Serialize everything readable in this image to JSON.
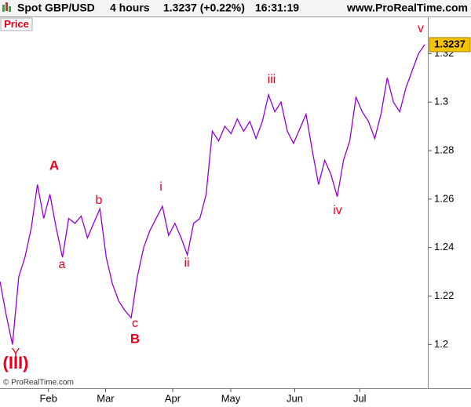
{
  "chart_data": {
    "type": "line",
    "title": "Spot GBP/USD",
    "timeframe": "4 hours",
    "quote": "1.3237 (+0.22%)",
    "time": "16:31:19",
    "source": "www.ProRealTime.com",
    "panel_label": "Price",
    "copyright": "© ProRealTime.com",
    "color": "#9400d3",
    "x": [
      0,
      2,
      4,
      6,
      8,
      10,
      12,
      14,
      16,
      18,
      20,
      22,
      24,
      26,
      28,
      30,
      32,
      34,
      36,
      38,
      40,
      42,
      44,
      46,
      48,
      50,
      52,
      54,
      56,
      58,
      60,
      62,
      64,
      66,
      68,
      70,
      72,
      74,
      76,
      78,
      80,
      82,
      84,
      86,
      88,
      90,
      92,
      94,
      96,
      98,
      100,
      102,
      104,
      106,
      108,
      110,
      112,
      114,
      116,
      118,
      120,
      122,
      124,
      126,
      128,
      130,
      132,
      134,
      136
    ],
    "values": [
      1.226,
      1.212,
      1.2,
      1.228,
      1.236,
      1.248,
      1.266,
      1.252,
      1.262,
      1.248,
      1.236,
      1.252,
      1.25,
      1.253,
      1.244,
      1.25,
      1.256,
      1.236,
      1.225,
      1.218,
      1.214,
      1.211,
      1.228,
      1.24,
      1.247,
      1.252,
      1.257,
      1.245,
      1.25,
      1.244,
      1.237,
      1.25,
      1.252,
      1.262,
      1.288,
      1.284,
      1.29,
      1.287,
      1.293,
      1.288,
      1.292,
      1.285,
      1.292,
      1.303,
      1.296,
      1.3,
      1.288,
      1.283,
      1.289,
      1.295,
      1.28,
      1.266,
      1.276,
      1.27,
      1.261,
      1.276,
      1.284,
      1.302,
      1.296,
      1.292,
      1.285,
      1.295,
      1.31,
      1.3,
      1.296,
      1.306,
      1.313,
      1.32,
      1.3237
    ],
    "xlim": [
      0,
      137
    ],
    "xticks": [
      {
        "value": 15.5,
        "label": "Feb"
      },
      {
        "value": 33.8,
        "label": "Mar"
      },
      {
        "value": 55.3,
        "label": "Apr"
      },
      {
        "value": 73.9,
        "label": "May"
      },
      {
        "value": 94.4,
        "label": "Jun"
      },
      {
        "value": 115.2,
        "label": "Jul"
      }
    ],
    "ylim": [
      1.182,
      1.335
    ],
    "yticks": [
      1.2,
      1.22,
      1.24,
      1.26,
      1.28,
      1.3,
      1.32
    ],
    "grid": false,
    "annotations": [
      "(III)",
      "Y",
      "A",
      "a",
      "b",
      "c",
      "B",
      "i",
      "ii",
      "iii",
      "iv",
      "v"
    ]
  }
}
